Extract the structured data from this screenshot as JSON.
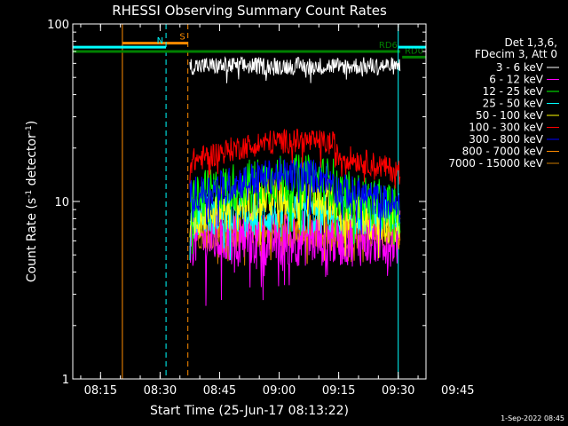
{
  "chart_data": {
    "type": "line",
    "title": "RHESSI Observing Summary Count Rates",
    "xlabel": "Start Time (25-Jun-17 08:13:22)",
    "ylabel_main": "Count Rate (s",
    "ylabel_sup1": "-1",
    "ylabel_mid": " detector",
    "ylabel_sup2": "-1",
    "ylabel_end": ")",
    "y_scale": "log",
    "ylim": [
      1,
      100
    ],
    "xlim_minutes": [
      8.0,
      97.0
    ],
    "x_ticks": [
      {
        "label": "08:15",
        "min": 15
      },
      {
        "label": "08:30",
        "min": 30
      },
      {
        "label": "08:45",
        "min": 45
      },
      {
        "label": "09:00",
        "min": 60
      },
      {
        "label": "09:15",
        "min": 75
      },
      {
        "label": "09:30",
        "min": 90
      },
      {
        "label": "09:45",
        "min": 105
      }
    ],
    "y_ticks": [
      {
        "label": "1",
        "value": 1
      },
      {
        "label": "10",
        "value": 10
      },
      {
        "label": "100",
        "value": 100
      }
    ],
    "legend_header": [
      "Det 1,3,6,",
      "FDecim 3, Att 0"
    ],
    "legend_placement": "right",
    "data_start_min": 37.5,
    "data_end_min": 90.5,
    "series": [
      {
        "name": "3 - 6 keV",
        "color": "#ffffff",
        "level": 58,
        "profile": "flat",
        "noise": 0.05
      },
      {
        "name": "6 - 12 keV",
        "color": "#ff00ff",
        "level": 6.2,
        "profile": "flat",
        "noise": 0.16
      },
      {
        "name": "12 - 25 keV",
        "color": "#00ff00",
        "level": 11,
        "profile": "hump",
        "noise": 0.14
      },
      {
        "name": "25 - 50 keV",
        "color": "#00ffff",
        "level": 8.5,
        "profile": "flat",
        "noise": 0.12
      },
      {
        "name": "50 - 100 keV",
        "color": "#ffff00",
        "level": 8.8,
        "profile": "hump",
        "noise": 0.12
      },
      {
        "name": "100 - 300 keV",
        "color": "#ff0000",
        "level": 18,
        "profile": "hump",
        "noise": 0.07
      },
      {
        "name": "300 - 800 keV",
        "color": "#0000ff",
        "level": 11.5,
        "profile": "hump",
        "noise": 0.1
      },
      {
        "name": "800 - 7000 keV",
        "color": "#ff8c00",
        "level": 7.2,
        "profile": "flat",
        "noise": 0.1
      },
      {
        "name": "7000 - 15000 keV",
        "color": "#cc7a00",
        "level": 6.5,
        "profile": "flat",
        "noise": 0.08
      }
    ],
    "annotations": [
      {
        "label": "S",
        "color": "#ff8c00",
        "start_min": 20.5,
        "end_min": 37.0,
        "value": 78,
        "dashed_line_min": 37.0,
        "solid_line_min": 20.5
      },
      {
        "label": "N",
        "color": "#00ffff",
        "start_min": 8.0,
        "end_min": 31.5,
        "value": 74,
        "dashed_line_min": 31.5,
        "solid_line_min": 8.0
      },
      {
        "label": "RD6",
        "color": "#008000",
        "start_min": 8.0,
        "end_min": 90.5,
        "value": 70
      },
      {
        "label": "RD0",
        "color": "#008000",
        "start_min": 91.0,
        "end_min": 103.0,
        "value": 65
      },
      {
        "label": "",
        "color": "#00ffff",
        "start_min": 90.0,
        "end_min": 104.0,
        "value": 74,
        "dashed_line_min": 104.0,
        "solid_line_min": 90.0
      }
    ]
  },
  "footer": {
    "timestamp": "1-Sep-2022 08:45"
  }
}
